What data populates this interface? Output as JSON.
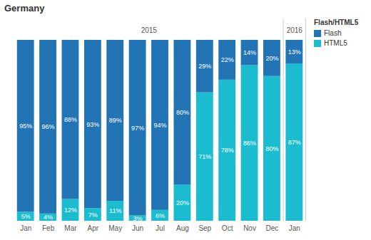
{
  "chart_data": {
    "type": "bar",
    "title": "Germany",
    "categories": [
      "Jan",
      "Feb",
      "Mar",
      "Apr",
      "May",
      "Jun",
      "Jul",
      "Aug",
      "Sep",
      "Oct",
      "Nov",
      "Dec",
      "Jan"
    ],
    "years": [
      "2015",
      "2015",
      "2015",
      "2015",
      "2015",
      "2015",
      "2015",
      "2015",
      "2015",
      "2015",
      "2015",
      "2015",
      "2016"
    ],
    "series": [
      {
        "name": "Flash",
        "color": "#2274b4",
        "values": [
          95,
          96,
          88,
          93,
          89,
          97,
          94,
          80,
          29,
          22,
          14,
          20,
          13
        ],
        "value_labels": [
          "95%",
          "96%",
          "88%",
          "93%",
          "89%",
          "97%",
          "94%",
          "80%",
          "29%",
          "22%",
          "14%",
          "20%",
          "13%"
        ]
      },
      {
        "name": "HTML5",
        "color": "#1bbccf",
        "values": [
          5,
          4,
          12,
          7,
          11,
          3,
          6,
          20,
          71,
          78,
          86,
          80,
          87
        ],
        "value_labels": [
          "5%",
          "4%",
          "12%",
          "7%",
          "11%",
          "3%",
          "6%",
          "20%",
          "71%",
          "78%",
          "86%",
          "80%",
          "87%"
        ]
      }
    ],
    "ylim": [
      0,
      100
    ],
    "stacked": true,
    "data_labels": true,
    "tick_labels": "x",
    "legend": "top-right",
    "legend_title": "Flash/HTML5"
  }
}
